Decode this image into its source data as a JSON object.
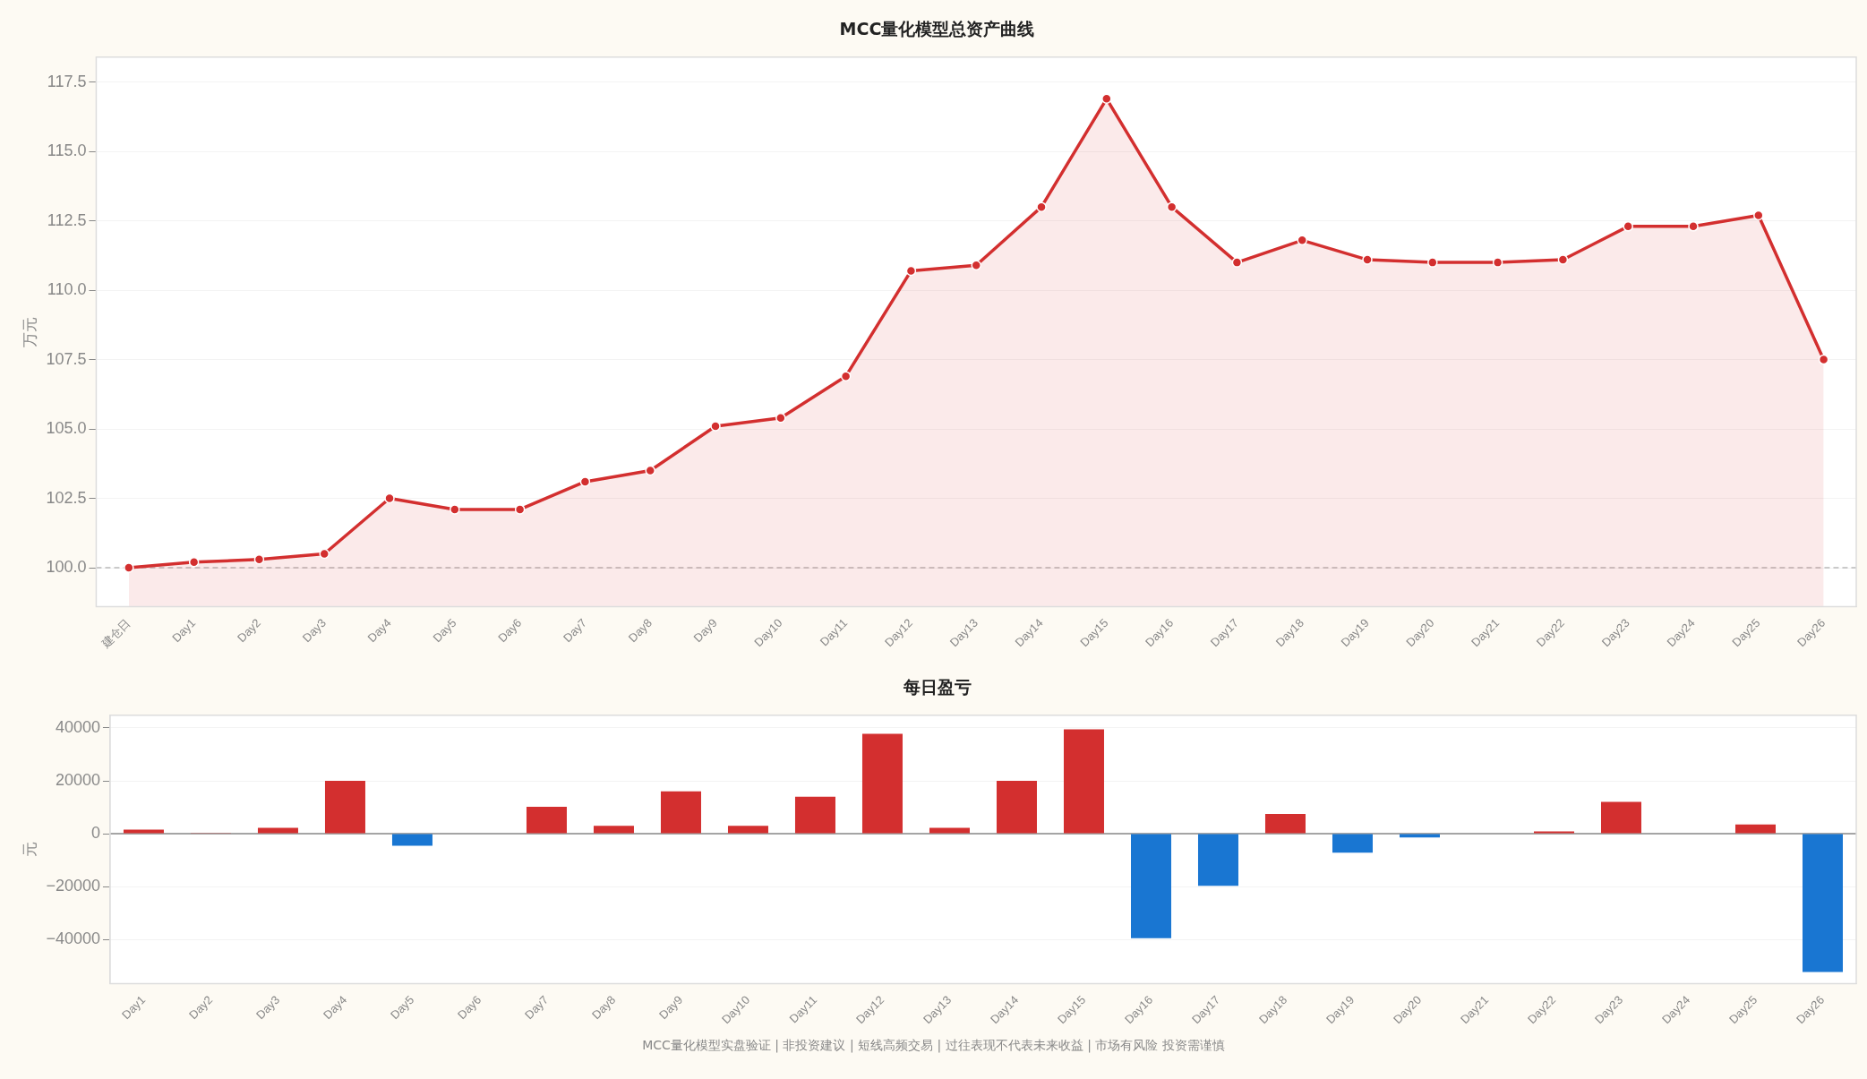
{
  "chart_data": [
    {
      "type": "area",
      "title": "MCC量化模型总资产曲线",
      "ylabel": "万元",
      "categories": [
        "建仓日",
        "Day1",
        "Day2",
        "Day3",
        "Day4",
        "Day5",
        "Day6",
        "Day7",
        "Day8",
        "Day9",
        "Day10",
        "Day11",
        "Day12",
        "Day13",
        "Day14",
        "Day15",
        "Day16",
        "Day17",
        "Day18",
        "Day19",
        "Day20",
        "Day21",
        "Day22",
        "Day23",
        "Day24",
        "Day25",
        "Day26"
      ],
      "series": [
        {
          "color": "#d32f2f",
          "values": [
            100.0,
            100.2,
            100.3,
            100.5,
            102.5,
            102.1,
            102.1,
            103.1,
            103.5,
            105.1,
            105.4,
            106.9,
            110.7,
            110.9,
            113.0,
            116.9,
            113.0,
            111.0,
            111.8,
            111.1,
            111.0,
            111.0,
            111.1,
            112.3,
            112.3,
            112.7,
            107.5
          ]
        }
      ],
      "ylim": [
        98.6,
        118.4
      ],
      "yticks": [
        {
          "value": 100,
          "label": "100.0"
        },
        102.5,
        {
          "value": 105,
          "label": "105.0"
        },
        107.5,
        {
          "value": 110,
          "label": "110.0"
        },
        112.5,
        {
          "value": 115,
          "label": "115.0"
        },
        117.5
      ],
      "ref_lines": [
        {
          "axis": "y",
          "value": 100,
          "color": "#bbbbbb",
          "line_style": "dashed"
        }
      ],
      "grid": "y",
      "legend": false,
      "marker": "circle",
      "line_style": "solid"
    },
    {
      "type": "bar",
      "title": "每日盈亏",
      "ylabel": "元",
      "categories": [
        "Day1",
        "Day2",
        "Day3",
        "Day4",
        "Day5",
        "Day6",
        "Day7",
        "Day8",
        "Day9",
        "Day10",
        "Day11",
        "Day12",
        "Day13",
        "Day14",
        "Day15",
        "Day16",
        "Day17",
        "Day18",
        "Day19",
        "Day20",
        "Day21",
        "Day22",
        "Day23",
        "Day24",
        "Day25",
        "Day26"
      ],
      "values": [
        1500,
        300,
        2200,
        20000,
        -4600,
        0,
        10200,
        3000,
        16000,
        3000,
        14000,
        37800,
        2200,
        20000,
        39500,
        -39500,
        -19700,
        7500,
        -7200,
        -1400,
        0,
        900,
        12000,
        0,
        3500,
        -52300
      ],
      "colors": [
        "#d32f2f",
        "#d32f2f",
        "#d32f2f",
        "#d32f2f",
        "#1976d2",
        "#d32f2f",
        "#d32f2f",
        "#d32f2f",
        "#d32f2f",
        "#d32f2f",
        "#d32f2f",
        "#d32f2f",
        "#d32f2f",
        "#d32f2f",
        "#d32f2f",
        "#1976d2",
        "#1976d2",
        "#d32f2f",
        "#1976d2",
        "#1976d2",
        "#d32f2f",
        "#d32f2f",
        "#d32f2f",
        "#d32f2f",
        "#d32f2f",
        "#1976d2"
      ],
      "ylim": [
        -56700,
        44800
      ],
      "yticks": [
        {
          "value": -40000,
          "label": "−40000"
        },
        {
          "value": -20000,
          "label": "−20000"
        },
        0,
        20000,
        40000
      ],
      "ref_lines": [
        {
          "axis": "y",
          "value": 0,
          "color": "#888888",
          "line_style": "solid"
        }
      ],
      "annotations": [
        "MCC量化模型实盘验证 | 非投资建议 | 短线高频交易 | 过往表现不代表未来收益 | 市场有风险 投资需谨慎"
      ],
      "grid": "y",
      "legend": false
    }
  ]
}
